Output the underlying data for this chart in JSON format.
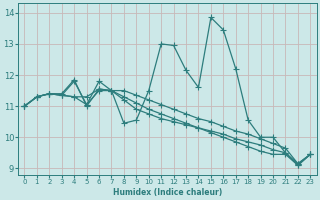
{
  "xlabel": "Humidex (Indice chaleur)",
  "xlim": [
    -0.5,
    23.5
  ],
  "ylim": [
    8.8,
    14.3
  ],
  "xticks": [
    0,
    1,
    2,
    3,
    4,
    5,
    6,
    7,
    8,
    9,
    10,
    11,
    12,
    13,
    14,
    15,
    16,
    17,
    18,
    19,
    20,
    21,
    22,
    23
  ],
  "yticks": [
    9,
    10,
    11,
    12,
    13,
    14
  ],
  "bg_color": "#cce8e8",
  "grid_color": "#c8b8b8",
  "line_color": "#2d7d7d",
  "lines": [
    {
      "x": [
        0,
        1,
        2,
        3,
        4,
        5,
        6,
        7,
        8,
        9,
        10,
        11,
        12,
        13,
        14,
        15,
        16,
        17,
        18,
        19,
        20,
        21,
        22,
        23
      ],
      "y": [
        11.0,
        11.3,
        11.4,
        11.4,
        11.85,
        11.0,
        11.55,
        11.5,
        10.45,
        10.55,
        11.5,
        13.0,
        12.95,
        12.15,
        11.6,
        13.85,
        13.45,
        12.2,
        10.55,
        10.0,
        10.0,
        9.5,
        9.1,
        9.45
      ]
    },
    {
      "x": [
        0,
        1,
        2,
        3,
        4,
        5,
        6,
        7,
        8,
        9,
        10,
        11,
        12,
        13,
        14,
        15,
        16,
        17,
        18,
        19,
        20,
        21,
        22,
        23
      ],
      "y": [
        11.0,
        11.3,
        11.4,
        11.35,
        11.3,
        11.3,
        11.55,
        11.5,
        11.5,
        11.35,
        11.2,
        11.05,
        10.9,
        10.75,
        10.6,
        10.5,
        10.35,
        10.2,
        10.1,
        9.95,
        9.8,
        9.65,
        9.15,
        9.45
      ]
    },
    {
      "x": [
        0,
        1,
        2,
        3,
        4,
        5,
        6,
        7,
        8,
        9,
        10,
        11,
        12,
        13,
        14,
        15,
        16,
        17,
        18,
        19,
        20,
        21,
        22,
        23
      ],
      "y": [
        11.0,
        11.3,
        11.4,
        11.35,
        11.3,
        11.05,
        11.5,
        11.5,
        11.3,
        11.1,
        10.9,
        10.75,
        10.6,
        10.45,
        10.3,
        10.15,
        10.0,
        9.85,
        9.7,
        9.55,
        9.45,
        9.45,
        9.1,
        9.45
      ]
    },
    {
      "x": [
        0,
        1,
        2,
        3,
        4,
        5,
        6,
        7,
        8,
        9,
        10,
        11,
        12,
        13,
        14,
        15,
        16,
        17,
        18,
        19,
        20,
        21,
        22,
        23
      ],
      "y": [
        11.0,
        11.3,
        11.4,
        11.35,
        11.8,
        11.05,
        11.8,
        11.5,
        11.2,
        10.9,
        10.75,
        10.6,
        10.5,
        10.4,
        10.3,
        10.2,
        10.1,
        9.95,
        9.85,
        9.75,
        9.6,
        9.5,
        9.15,
        9.45
      ]
    }
  ],
  "marker": "+",
  "markersize": 4.0,
  "linewidth": 0.9
}
